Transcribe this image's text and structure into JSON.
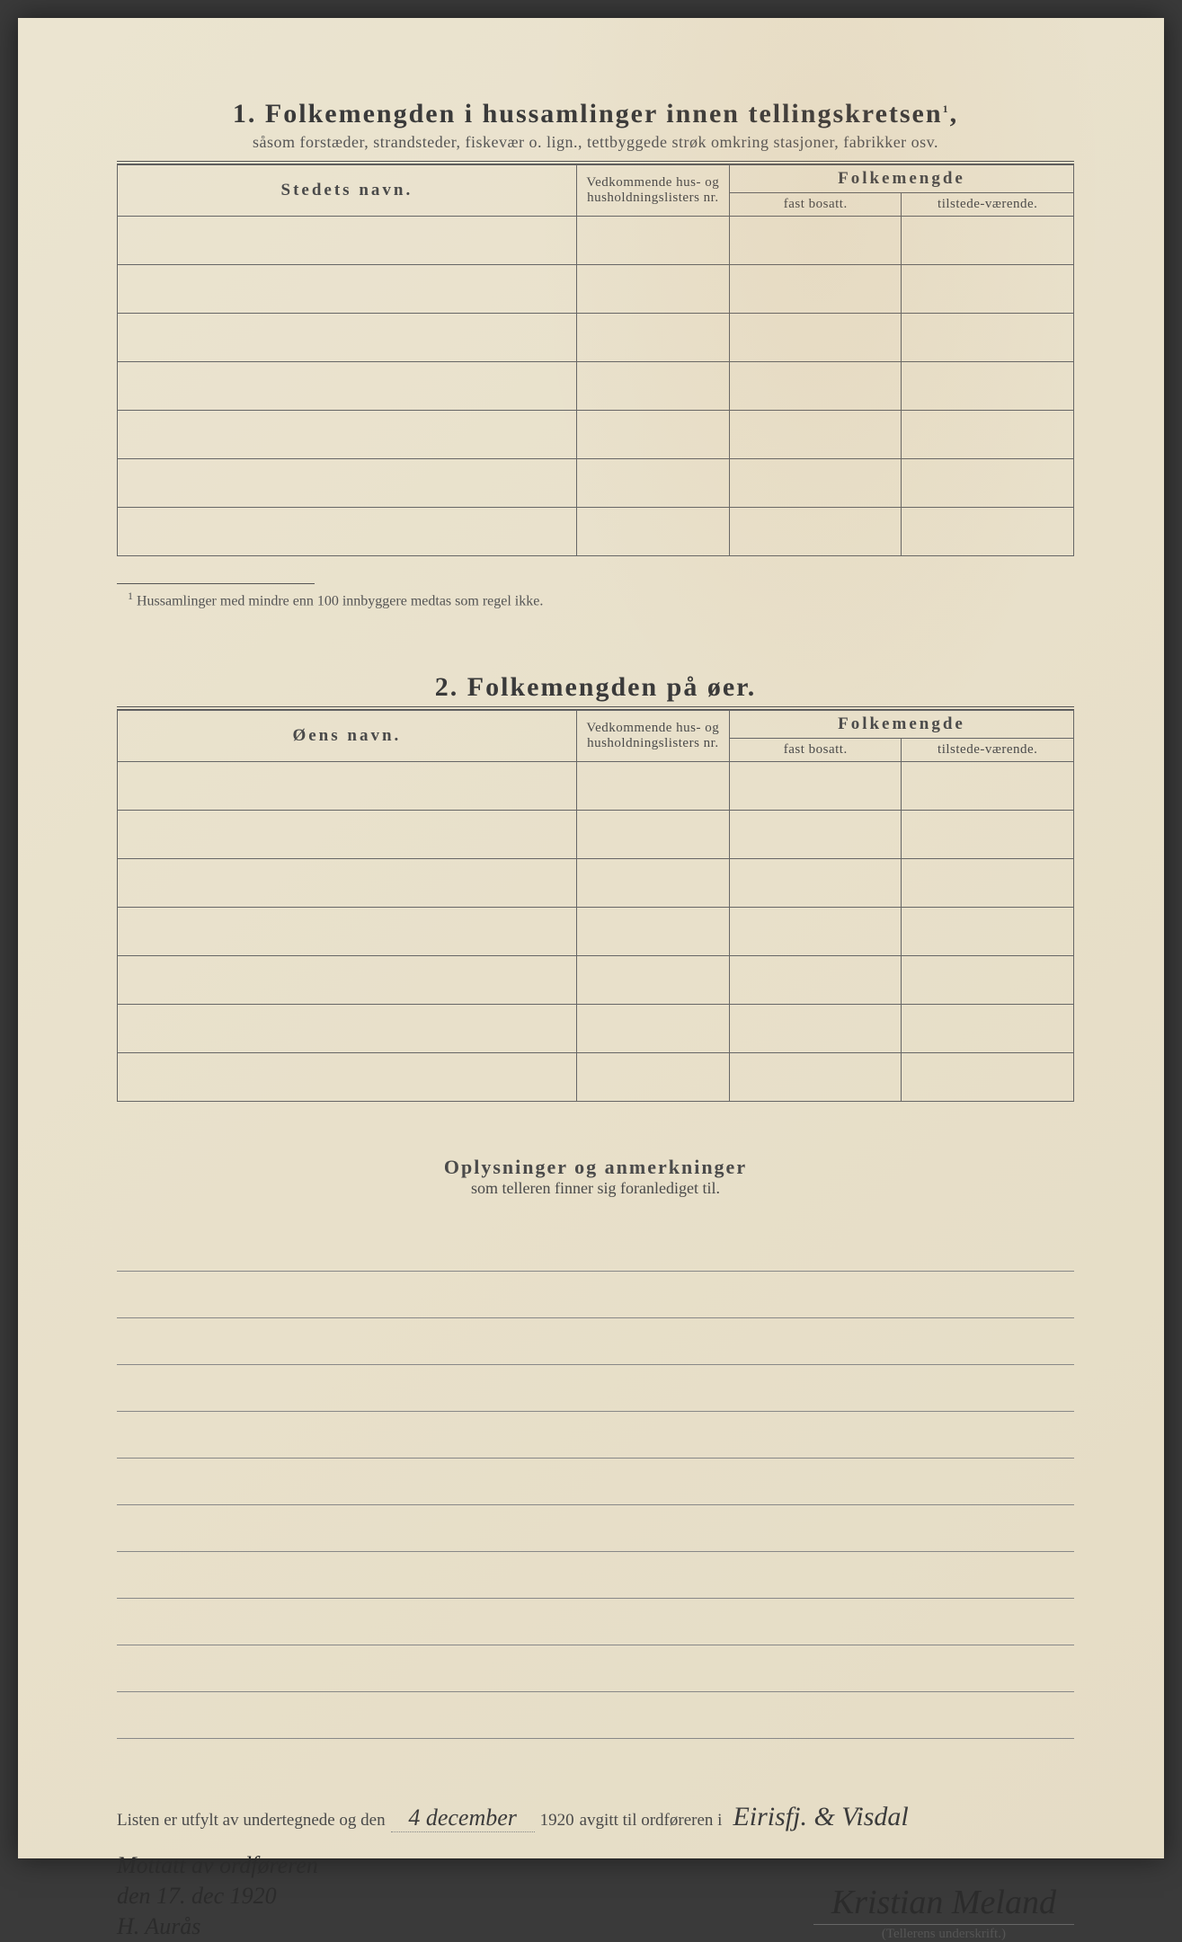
{
  "section1": {
    "number": "1.",
    "title": "Folkemengden i hussamlinger innen tellingskretsen",
    "title_sup": "1",
    "subtitle": "såsom forstæder, strandsteder, fiskevær o. lign., tettbyggede strøk omkring stasjoner, fabrikker osv.",
    "col_name": "Stedets navn.",
    "col_ref": "Vedkommende hus- og husholdningslisters nr.",
    "col_folke": "Folkemengde",
    "col_fast": "fast bosatt.",
    "col_tilstede": "tilstede-værende.",
    "row_count": 7,
    "footnote_sup": "1",
    "footnote": "Hussamlinger med mindre enn 100 innbyggere medtas som regel ikke."
  },
  "section2": {
    "number": "2.",
    "title": "Folkemengden på øer.",
    "col_name": "Øens navn.",
    "col_ref": "Vedkommende hus- og husholdningslisters nr.",
    "col_folke": "Folkemengde",
    "col_fast": "fast bosatt.",
    "col_tilstede": "tilstede-værende.",
    "row_count": 7
  },
  "remarks": {
    "title": "Oplysninger og anmerkninger",
    "subtitle": "som telleren finner sig foranlediget til.",
    "line_count": 11
  },
  "closing": {
    "text_a": "Listen er utfylt av undertegnede og den",
    "date_handwritten": "4 december",
    "year": "1920",
    "text_b": "avgitt til ordføreren i",
    "place_handwritten": "Eirisfj. & Visdal"
  },
  "signatures": {
    "left_line1": "Mottatt av ordføreren",
    "left_line2": "den 17. dec 1920",
    "left_line3": "H. Aurås",
    "right_signature": "Kristian Meland",
    "right_label": "(Tellerens underskrift.)"
  },
  "colors": {
    "paper": "#e8e0ca",
    "ink": "#4a4a4a",
    "rule": "#666"
  }
}
